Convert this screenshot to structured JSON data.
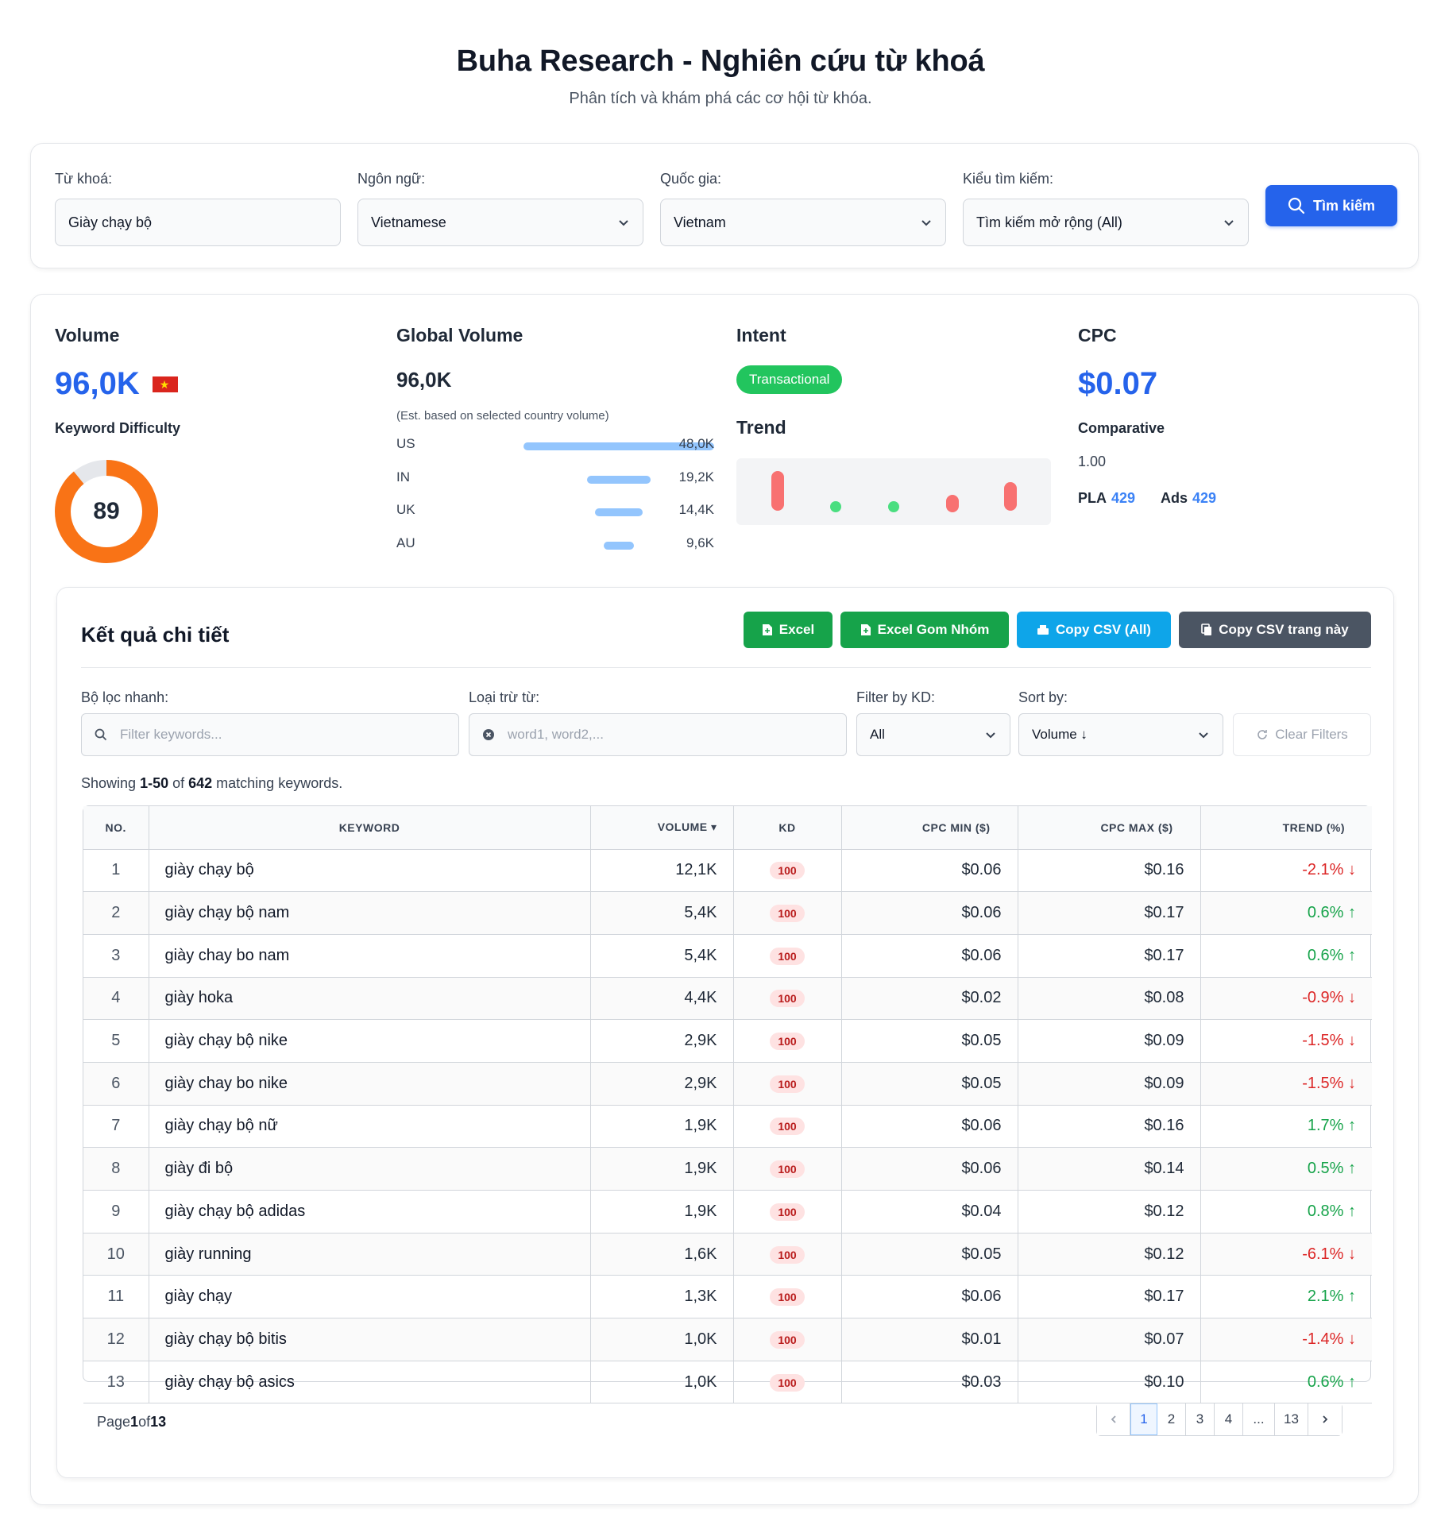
{
  "header": {
    "title": "Buha Research - Nghiên cứu từ khoá",
    "subtitle": "Phân tích và khám phá các cơ hội từ khóa."
  },
  "search": {
    "keyword_label": "Từ khoá:",
    "keyword_value": "Giày chạy bộ",
    "language_label": "Ngôn ngữ:",
    "language_value": "Vietnamese",
    "country_label": "Quốc gia:",
    "country_value": "Vietnam",
    "type_label": "Kiểu tìm kiếm:",
    "type_value": "Tìm kiếm mở rộng (All)",
    "button_label": "Tìm kiếm"
  },
  "metrics": {
    "volume_title": "Volume",
    "volume_value": "96,0K",
    "kd_title": "Keyword Difficulty",
    "kd_value": "89",
    "kd_percent": 89,
    "global_title": "Global Volume",
    "global_value": "96,0K",
    "global_note": "(Est. based on selected country volume)",
    "countries": [
      {
        "code": "US",
        "value": "48,0K",
        "share": 1.0
      },
      {
        "code": "IN",
        "value": "19,2K",
        "share": 0.33
      },
      {
        "code": "UK",
        "value": "14,4K",
        "share": 0.25
      },
      {
        "code": "AU",
        "value": "9,6K",
        "share": 0.16
      }
    ],
    "intent_title": "Intent",
    "intent_value": "Transactional",
    "trend_title": "Trend",
    "cpc_title": "CPC",
    "cpc_value": "$0.07",
    "comparative_title": "Comparative",
    "comparative_value": "1.00",
    "pla_label": "PLA",
    "pla_value": "429",
    "ads_label": "Ads",
    "ads_value": "429"
  },
  "results": {
    "title": "Kết quả chi tiết",
    "buttons": {
      "excel": "Excel",
      "excel_group": "Excel Gom Nhóm",
      "copy_all": "Copy CSV (All)",
      "copy_page": "Copy CSV trang này"
    },
    "filters": {
      "quick_label": "Bộ lọc nhanh:",
      "quick_placeholder": "Filter keywords...",
      "exclude_label": "Loại trừ từ:",
      "exclude_placeholder": "word1, word2,...",
      "kd_label": "Filter by KD:",
      "kd_value": "All",
      "sort_label": "Sort by:",
      "sort_value": "Volume ↓",
      "clear_label": "Clear Filters"
    },
    "showing": {
      "prefix": "Showing ",
      "range": "1-50",
      "mid": " of ",
      "total": "642",
      "suffix": " matching keywords."
    },
    "columns": [
      "NO.",
      "KEYWORD",
      "VOLUME ▾",
      "KD",
      "CPC MIN ($)",
      "CPC MAX ($)",
      "TREND (%)"
    ],
    "rows": [
      {
        "no": "1",
        "keyword": "giày chạy bộ",
        "volume": "12,1K",
        "kd": "100",
        "cpc_min": "$0.06",
        "cpc_max": "$0.16",
        "trend": "-2.1%",
        "dir": "down"
      },
      {
        "no": "2",
        "keyword": "giày chạy bộ nam",
        "volume": "5,4K",
        "kd": "100",
        "cpc_min": "$0.06",
        "cpc_max": "$0.17",
        "trend": "0.6%",
        "dir": "up"
      },
      {
        "no": "3",
        "keyword": "giày chay bo nam",
        "volume": "5,4K",
        "kd": "100",
        "cpc_min": "$0.06",
        "cpc_max": "$0.17",
        "trend": "0.6%",
        "dir": "up"
      },
      {
        "no": "4",
        "keyword": "giày hoka",
        "volume": "4,4K",
        "kd": "100",
        "cpc_min": "$0.02",
        "cpc_max": "$0.08",
        "trend": "-0.9%",
        "dir": "down"
      },
      {
        "no": "5",
        "keyword": "giày chạy bộ nike",
        "volume": "2,9K",
        "kd": "100",
        "cpc_min": "$0.05",
        "cpc_max": "$0.09",
        "trend": "-1.5%",
        "dir": "down"
      },
      {
        "no": "6",
        "keyword": "giày chay bo nike",
        "volume": "2,9K",
        "kd": "100",
        "cpc_min": "$0.05",
        "cpc_max": "$0.09",
        "trend": "-1.5%",
        "dir": "down"
      },
      {
        "no": "7",
        "keyword": "giày chạy bộ nữ",
        "volume": "1,9K",
        "kd": "100",
        "cpc_min": "$0.06",
        "cpc_max": "$0.16",
        "trend": "1.7%",
        "dir": "up"
      },
      {
        "no": "8",
        "keyword": "giày đi bộ",
        "volume": "1,9K",
        "kd": "100",
        "cpc_min": "$0.06",
        "cpc_max": "$0.14",
        "trend": "0.5%",
        "dir": "up"
      },
      {
        "no": "9",
        "keyword": "giày chạy bộ adidas",
        "volume": "1,9K",
        "kd": "100",
        "cpc_min": "$0.04",
        "cpc_max": "$0.12",
        "trend": "0.8%",
        "dir": "up"
      },
      {
        "no": "10",
        "keyword": "giày running",
        "volume": "1,6K",
        "kd": "100",
        "cpc_min": "$0.05",
        "cpc_max": "$0.12",
        "trend": "-6.1%",
        "dir": "down"
      },
      {
        "no": "11",
        "keyword": "giày chạy",
        "volume": "1,3K",
        "kd": "100",
        "cpc_min": "$0.06",
        "cpc_max": "$0.17",
        "trend": "2.1%",
        "dir": "up"
      },
      {
        "no": "12",
        "keyword": "giày chạy bộ bitis",
        "volume": "1,0K",
        "kd": "100",
        "cpc_min": "$0.01",
        "cpc_max": "$0.07",
        "trend": "-1.4%",
        "dir": "down"
      },
      {
        "no": "13",
        "keyword": "giày chạy bộ asics",
        "volume": "1,0K",
        "kd": "100",
        "cpc_min": "$0.03",
        "cpc_max": "$0.10",
        "trend": "0.6%",
        "dir": "up"
      }
    ],
    "page_info": {
      "prefix": "Page",
      "current": "1",
      "mid": "of",
      "total": "13"
    },
    "pages": [
      "1",
      "2",
      "3",
      "4",
      "...",
      "13"
    ]
  },
  "colors": {
    "primary": "#2563eb",
    "green": "#16a34a",
    "red": "#dc2626",
    "kd_ring": "#f97316",
    "intent_badge": "#22c55e",
    "copy_all_btn": "#0ea5e9",
    "copy_page_btn": "#4b5563"
  }
}
